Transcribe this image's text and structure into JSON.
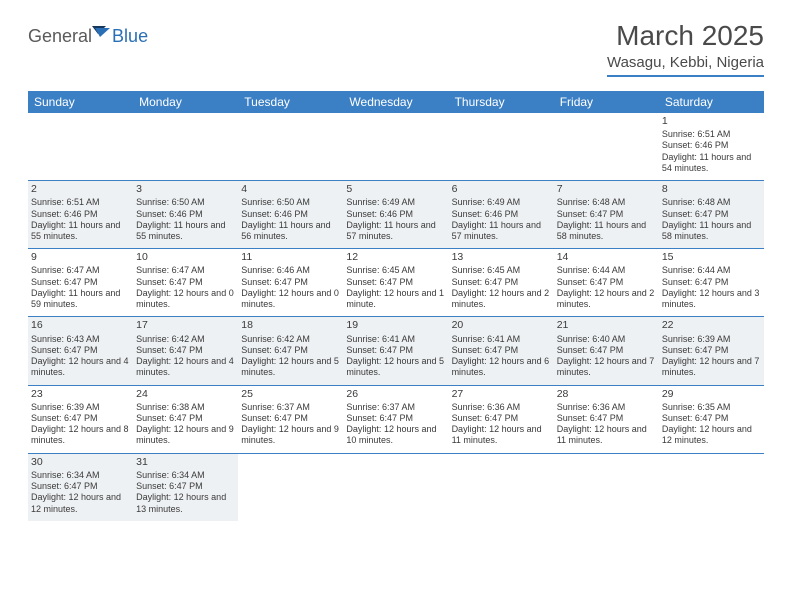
{
  "brand": {
    "name_part1": "General",
    "name_part2": "Blue",
    "text_color1": "#5a5a5a",
    "text_color2": "#2a6fb5",
    "icon_fill1": "#16365c",
    "icon_fill2": "#2a6fb5"
  },
  "header": {
    "month_title": "March 2025",
    "location": "Wasagu, Kebbi, Nigeria",
    "title_color": "#4a4a4a",
    "accent_color": "#3b7fc4"
  },
  "calendar": {
    "header_bg": "#3b7fc4",
    "header_fg": "#ffffff",
    "cell_border": "#3b7fc4",
    "shaded_bg": "#eef1f3",
    "text_color": "#3a3a3a",
    "font_size_header": 12,
    "font_size_daynum": 10.5,
    "font_size_body": 9,
    "day_labels": [
      "Sunday",
      "Monday",
      "Tuesday",
      "Wednesday",
      "Thursday",
      "Friday",
      "Saturday"
    ],
    "weeks": [
      [
        {
          "empty": true
        },
        {
          "empty": true
        },
        {
          "empty": true
        },
        {
          "empty": true
        },
        {
          "empty": true
        },
        {
          "empty": true
        },
        {
          "num": "1",
          "shaded": false,
          "sunrise": "Sunrise: 6:51 AM",
          "sunset": "Sunset: 6:46 PM",
          "daylight": "Daylight: 11 hours and 54 minutes."
        }
      ],
      [
        {
          "num": "2",
          "shaded": true,
          "sunrise": "Sunrise: 6:51 AM",
          "sunset": "Sunset: 6:46 PM",
          "daylight": "Daylight: 11 hours and 55 minutes."
        },
        {
          "num": "3",
          "shaded": true,
          "sunrise": "Sunrise: 6:50 AM",
          "sunset": "Sunset: 6:46 PM",
          "daylight": "Daylight: 11 hours and 55 minutes."
        },
        {
          "num": "4",
          "shaded": true,
          "sunrise": "Sunrise: 6:50 AM",
          "sunset": "Sunset: 6:46 PM",
          "daylight": "Daylight: 11 hours and 56 minutes."
        },
        {
          "num": "5",
          "shaded": true,
          "sunrise": "Sunrise: 6:49 AM",
          "sunset": "Sunset: 6:46 PM",
          "daylight": "Daylight: 11 hours and 57 minutes."
        },
        {
          "num": "6",
          "shaded": true,
          "sunrise": "Sunrise: 6:49 AM",
          "sunset": "Sunset: 6:46 PM",
          "daylight": "Daylight: 11 hours and 57 minutes."
        },
        {
          "num": "7",
          "shaded": true,
          "sunrise": "Sunrise: 6:48 AM",
          "sunset": "Sunset: 6:47 PM",
          "daylight": "Daylight: 11 hours and 58 minutes."
        },
        {
          "num": "8",
          "shaded": true,
          "sunrise": "Sunrise: 6:48 AM",
          "sunset": "Sunset: 6:47 PM",
          "daylight": "Daylight: 11 hours and 58 minutes."
        }
      ],
      [
        {
          "num": "9",
          "shaded": false,
          "sunrise": "Sunrise: 6:47 AM",
          "sunset": "Sunset: 6:47 PM",
          "daylight": "Daylight: 11 hours and 59 minutes."
        },
        {
          "num": "10",
          "shaded": false,
          "sunrise": "Sunrise: 6:47 AM",
          "sunset": "Sunset: 6:47 PM",
          "daylight": "Daylight: 12 hours and 0 minutes."
        },
        {
          "num": "11",
          "shaded": false,
          "sunrise": "Sunrise: 6:46 AM",
          "sunset": "Sunset: 6:47 PM",
          "daylight": "Daylight: 12 hours and 0 minutes."
        },
        {
          "num": "12",
          "shaded": false,
          "sunrise": "Sunrise: 6:45 AM",
          "sunset": "Sunset: 6:47 PM",
          "daylight": "Daylight: 12 hours and 1 minute."
        },
        {
          "num": "13",
          "shaded": false,
          "sunrise": "Sunrise: 6:45 AM",
          "sunset": "Sunset: 6:47 PM",
          "daylight": "Daylight: 12 hours and 2 minutes."
        },
        {
          "num": "14",
          "shaded": false,
          "sunrise": "Sunrise: 6:44 AM",
          "sunset": "Sunset: 6:47 PM",
          "daylight": "Daylight: 12 hours and 2 minutes."
        },
        {
          "num": "15",
          "shaded": false,
          "sunrise": "Sunrise: 6:44 AM",
          "sunset": "Sunset: 6:47 PM",
          "daylight": "Daylight: 12 hours and 3 minutes."
        }
      ],
      [
        {
          "num": "16",
          "shaded": true,
          "sunrise": "Sunrise: 6:43 AM",
          "sunset": "Sunset: 6:47 PM",
          "daylight": "Daylight: 12 hours and 4 minutes."
        },
        {
          "num": "17",
          "shaded": true,
          "sunrise": "Sunrise: 6:42 AM",
          "sunset": "Sunset: 6:47 PM",
          "daylight": "Daylight: 12 hours and 4 minutes."
        },
        {
          "num": "18",
          "shaded": true,
          "sunrise": "Sunrise: 6:42 AM",
          "sunset": "Sunset: 6:47 PM",
          "daylight": "Daylight: 12 hours and 5 minutes."
        },
        {
          "num": "19",
          "shaded": true,
          "sunrise": "Sunrise: 6:41 AM",
          "sunset": "Sunset: 6:47 PM",
          "daylight": "Daylight: 12 hours and 5 minutes."
        },
        {
          "num": "20",
          "shaded": true,
          "sunrise": "Sunrise: 6:41 AM",
          "sunset": "Sunset: 6:47 PM",
          "daylight": "Daylight: 12 hours and 6 minutes."
        },
        {
          "num": "21",
          "shaded": true,
          "sunrise": "Sunrise: 6:40 AM",
          "sunset": "Sunset: 6:47 PM",
          "daylight": "Daylight: 12 hours and 7 minutes."
        },
        {
          "num": "22",
          "shaded": true,
          "sunrise": "Sunrise: 6:39 AM",
          "sunset": "Sunset: 6:47 PM",
          "daylight": "Daylight: 12 hours and 7 minutes."
        }
      ],
      [
        {
          "num": "23",
          "shaded": false,
          "sunrise": "Sunrise: 6:39 AM",
          "sunset": "Sunset: 6:47 PM",
          "daylight": "Daylight: 12 hours and 8 minutes."
        },
        {
          "num": "24",
          "shaded": false,
          "sunrise": "Sunrise: 6:38 AM",
          "sunset": "Sunset: 6:47 PM",
          "daylight": "Daylight: 12 hours and 9 minutes."
        },
        {
          "num": "25",
          "shaded": false,
          "sunrise": "Sunrise: 6:37 AM",
          "sunset": "Sunset: 6:47 PM",
          "daylight": "Daylight: 12 hours and 9 minutes."
        },
        {
          "num": "26",
          "shaded": false,
          "sunrise": "Sunrise: 6:37 AM",
          "sunset": "Sunset: 6:47 PM",
          "daylight": "Daylight: 12 hours and 10 minutes."
        },
        {
          "num": "27",
          "shaded": false,
          "sunrise": "Sunrise: 6:36 AM",
          "sunset": "Sunset: 6:47 PM",
          "daylight": "Daylight: 12 hours and 11 minutes."
        },
        {
          "num": "28",
          "shaded": false,
          "sunrise": "Sunrise: 6:36 AM",
          "sunset": "Sunset: 6:47 PM",
          "daylight": "Daylight: 12 hours and 11 minutes."
        },
        {
          "num": "29",
          "shaded": false,
          "sunrise": "Sunrise: 6:35 AM",
          "sunset": "Sunset: 6:47 PM",
          "daylight": "Daylight: 12 hours and 12 minutes."
        }
      ],
      [
        {
          "num": "30",
          "shaded": true,
          "sunrise": "Sunrise: 6:34 AM",
          "sunset": "Sunset: 6:47 PM",
          "daylight": "Daylight: 12 hours and 12 minutes."
        },
        {
          "num": "31",
          "shaded": true,
          "sunrise": "Sunrise: 6:34 AM",
          "sunset": "Sunset: 6:47 PM",
          "daylight": "Daylight: 12 hours and 13 minutes."
        },
        {
          "empty": true
        },
        {
          "empty": true
        },
        {
          "empty": true
        },
        {
          "empty": true
        },
        {
          "empty": true
        }
      ]
    ]
  }
}
